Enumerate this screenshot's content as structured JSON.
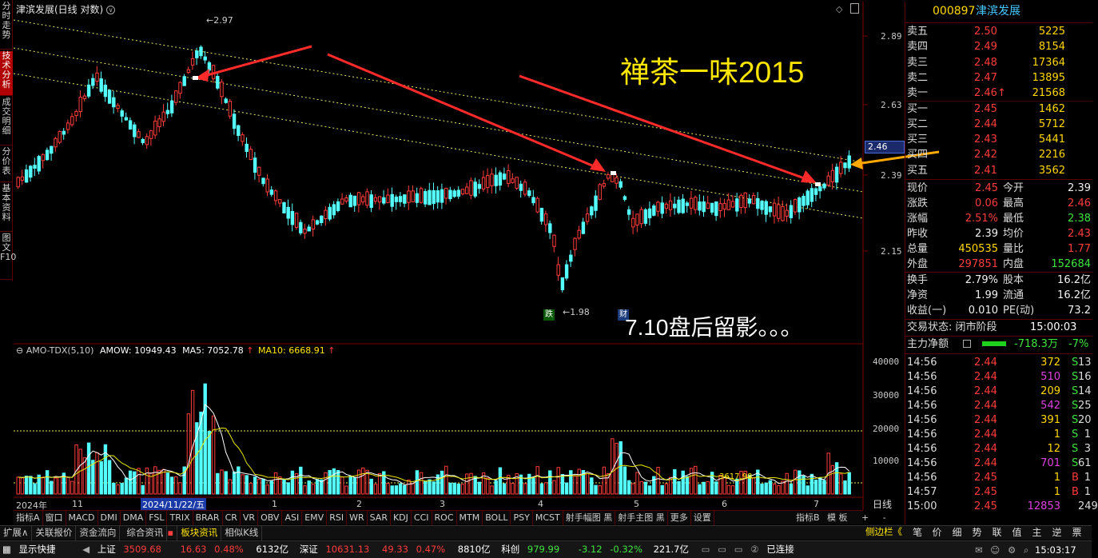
{
  "left_tabs": [
    {
      "label": "分时走势",
      "active": false
    },
    {
      "label": "技术分析",
      "active": true
    },
    {
      "label": "成交明细",
      "active": false
    },
    {
      "label": "分价表",
      "active": false
    },
    {
      "label": "基本资料",
      "active": false
    },
    {
      "label": "图文F10",
      "active": false
    }
  ],
  "chart": {
    "title": "津滨发展(日线 对数)",
    "price_axis": [
      "2.89",
      "2.63",
      "2.39",
      "2.15"
    ],
    "current_price_tag": "2.46",
    "high_label": "2.97",
    "low_label": "1.98",
    "watermark": "禅茶一味2015",
    "note": "7.10盘后留影。。。",
    "badge_fall": "跌",
    "badge_fin": "财"
  },
  "volume": {
    "header_name": "AMO-TDX(5,10)",
    "amow": "AMOW: 10949.43",
    "ma5": "MA5: 7052.78",
    "ma10": "MA10: 6668.91",
    "axis": [
      "40000",
      "30000",
      "20000",
      "10000"
    ],
    "ma_readout": "3617.98"
  },
  "date_axis": {
    "labels": [
      "2024年",
      "11",
      "2024/11/22/五",
      "1",
      "2",
      "3",
      "4",
      "5",
      "6",
      "7"
    ],
    "period": "日线"
  },
  "indicator_tabs": [
    "指标A",
    "窗口",
    "MACD",
    "DMI",
    "DMA",
    "FSL",
    "TRIX",
    "BRAR",
    "CR",
    "VR",
    "OBV",
    "ASI",
    "EMV",
    "RSI",
    "WR",
    "SAR",
    "KDJ",
    "CCI",
    "ROC",
    "MTM",
    "BOLL",
    "PSY",
    "MCST",
    "射手幅图 黑",
    "射手主图 黑",
    "更多",
    "设置"
  ],
  "indicator_right": [
    "指标B",
    "模 板",
    "+",
    "-"
  ],
  "bottom_bar1": [
    "扩展∧",
    "关联报价",
    "资金流向",
    "综合资讯",
    "板块资讯",
    "相似K线"
  ],
  "bottom_bar1_right": "侧边栏《",
  "bottom_bar1_icons": [
    "笔",
    "价",
    "细",
    "势",
    "联",
    "值",
    "主",
    "逆",
    "票"
  ],
  "status": {
    "label": "显示快捷",
    "sh_name": "上证",
    "sh_val": "3509.68",
    "sh_chg": "16.63",
    "sh_pct": "0.48%",
    "sh_amt": "6132亿",
    "sz_name": "深证",
    "sz_val": "10631.13",
    "sz_chg": "49.33",
    "sz_pct": "0.47%",
    "sz_amt": "8810亿",
    "kc_name": "科创",
    "kc_val": "979.99",
    "kc_chg": "-3.12",
    "kc_pct": "-0.32%",
    "kc_amt": "221.7亿",
    "conn": "已连接",
    "time": "15:03:17"
  },
  "stock": {
    "code": "000897",
    "name": "津滨发展"
  },
  "sell": [
    {
      "label": "卖五",
      "price": "2.50",
      "vol": "5225"
    },
    {
      "label": "卖四",
      "price": "2.49",
      "vol": "8154"
    },
    {
      "label": "卖三",
      "price": "2.48",
      "vol": "17364"
    },
    {
      "label": "卖二",
      "price": "2.47",
      "vol": "13895"
    },
    {
      "label": "卖一",
      "price": "2.46↑",
      "vol": "21568"
    }
  ],
  "buy": [
    {
      "label": "买一",
      "price": "2.45",
      "vol": "1462"
    },
    {
      "label": "买二",
      "price": "2.44",
      "vol": "5712"
    },
    {
      "label": "买三",
      "price": "2.43",
      "vol": "5441"
    },
    {
      "label": "买四",
      "price": "2.42",
      "vol": "2216"
    },
    {
      "label": "买五",
      "price": "2.41",
      "vol": "3562"
    }
  ],
  "quote": [
    {
      "l1": "现价",
      "v1": "2.45",
      "l2": "今开",
      "v2": "2.39"
    },
    {
      "l1": "涨跌",
      "v1": "0.06",
      "l2": "最高",
      "v2": "2.46"
    },
    {
      "l1": "涨幅",
      "v1": "2.51%",
      "l2": "最低",
      "v2": "2.38"
    },
    {
      "l1": "昨收",
      "v1": "2.39",
      "l2": "均价",
      "v2": "2.43"
    },
    {
      "l1": "总量",
      "v1": "450535",
      "l2": "量比",
      "v2": "1.77"
    },
    {
      "l1": "外盘",
      "v1": "297851",
      "l2": "内盘",
      "v2": "152684"
    }
  ],
  "fundamentals": [
    {
      "l1": "换手",
      "v1": "2.79%",
      "l2": "股本",
      "v2": "16.2亿"
    },
    {
      "l1": "净资",
      "v1": "1.99",
      "l2": "流通",
      "v2": "16.2亿"
    },
    {
      "l1": "收益(一)",
      "v1": "0.010",
      "l2": "PE(动)",
      "v2": "73.2"
    }
  ],
  "trade_status": {
    "label": "交易状态: 闭市阶段",
    "time": "15:00:03"
  },
  "main_flow": {
    "label": "主力净额",
    "value": "-718.3万",
    "pct": "-7%"
  },
  "ticks": [
    {
      "t": "14:56",
      "p": "2.44",
      "v": "372",
      "s": "S",
      "n": "13"
    },
    {
      "t": "14:56",
      "p": "2.44",
      "v": "510",
      "s": "S",
      "n": "16"
    },
    {
      "t": "14:56",
      "p": "2.44",
      "v": "209",
      "s": "S",
      "n": "14"
    },
    {
      "t": "14:56",
      "p": "2.44",
      "v": "542",
      "s": "S",
      "n": "25"
    },
    {
      "t": "14:56",
      "p": "2.44",
      "v": "391",
      "s": "S",
      "n": "20"
    },
    {
      "t": "14:56",
      "p": "2.44",
      "v": "1",
      "s": "S",
      "n": "1"
    },
    {
      "t": "14:56",
      "p": "2.44",
      "v": "12",
      "s": "S",
      "n": "3"
    },
    {
      "t": "14:56",
      "p": "2.44",
      "v": "701",
      "s": "S",
      "n": "61"
    },
    {
      "t": "14:56",
      "p": "2.45",
      "v": "1",
      "s": "B",
      "n": "1"
    },
    {
      "t": "14:57",
      "p": "2.45",
      "v": "1",
      "s": "B",
      "n": "1"
    },
    {
      "t": "15:00",
      "p": "2.45",
      "v": "12853",
      "s": "",
      "n": "249"
    }
  ]
}
